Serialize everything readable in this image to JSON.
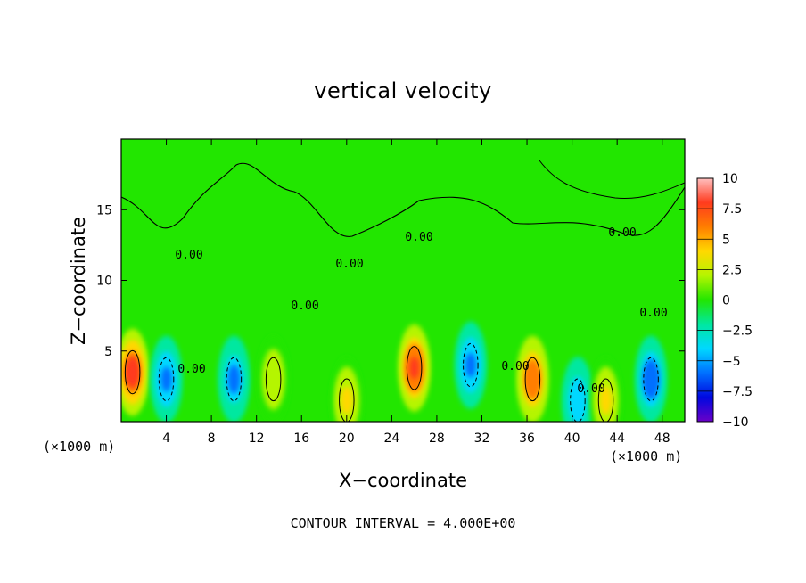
{
  "chart_data": {
    "type": "heatmap",
    "title": "vertical velocity",
    "xlabel": "X−coordinate",
    "ylabel": "Z−coordinate",
    "x_unit": "(×1000 m)",
    "x_ticks": [
      4,
      8,
      12,
      16,
      20,
      24,
      28,
      32,
      36,
      40,
      44,
      48
    ],
    "y_ticks": [
      5,
      10,
      15
    ],
    "xlim": [
      0,
      50
    ],
    "ylim": [
      0,
      20
    ],
    "colorbar": {
      "ticks": [
        "10",
        "7.5",
        "5",
        "2.5",
        "0",
        "−2.5",
        "−5",
        "−7.5",
        "−10"
      ],
      "range": [
        -10,
        10
      ],
      "colors": [
        "#ffbfbf",
        "#ff3b1e",
        "#ff7e00",
        "#ffd800",
        "#b5f500",
        "#22e600",
        "#00e8a0",
        "#00d8ff",
        "#0070ff",
        "#0008e0",
        "#6a00c8"
      ]
    },
    "contour_label": "0.00",
    "contour_interval_note": "CONTOUR INTERVAL =  4.000E+00",
    "cells": [
      {
        "x": 1,
        "z": 3.5,
        "w": 8.5
      },
      {
        "x": 26,
        "z": 3.8,
        "w": 8.0
      },
      {
        "x": 36.5,
        "z": 3.0,
        "w": 6.5
      },
      {
        "x": 4,
        "z": 3.0,
        "w": -5.5
      },
      {
        "x": 10,
        "z": 3.0,
        "w": -5.0
      },
      {
        "x": 31,
        "z": 4.0,
        "w": -6.0
      },
      {
        "x": 47,
        "z": 3.0,
        "w": -6.5
      },
      {
        "x": 40.5,
        "z": 1.5,
        "w": -4.0
      },
      {
        "x": 20,
        "z": 1.5,
        "w": 4.0
      },
      {
        "x": 13.5,
        "z": 3.0,
        "w": 3.0
      },
      {
        "x": 43,
        "z": 1.5,
        "w": 4.0
      }
    ]
  },
  "colors": {
    "background": "#22e600"
  }
}
